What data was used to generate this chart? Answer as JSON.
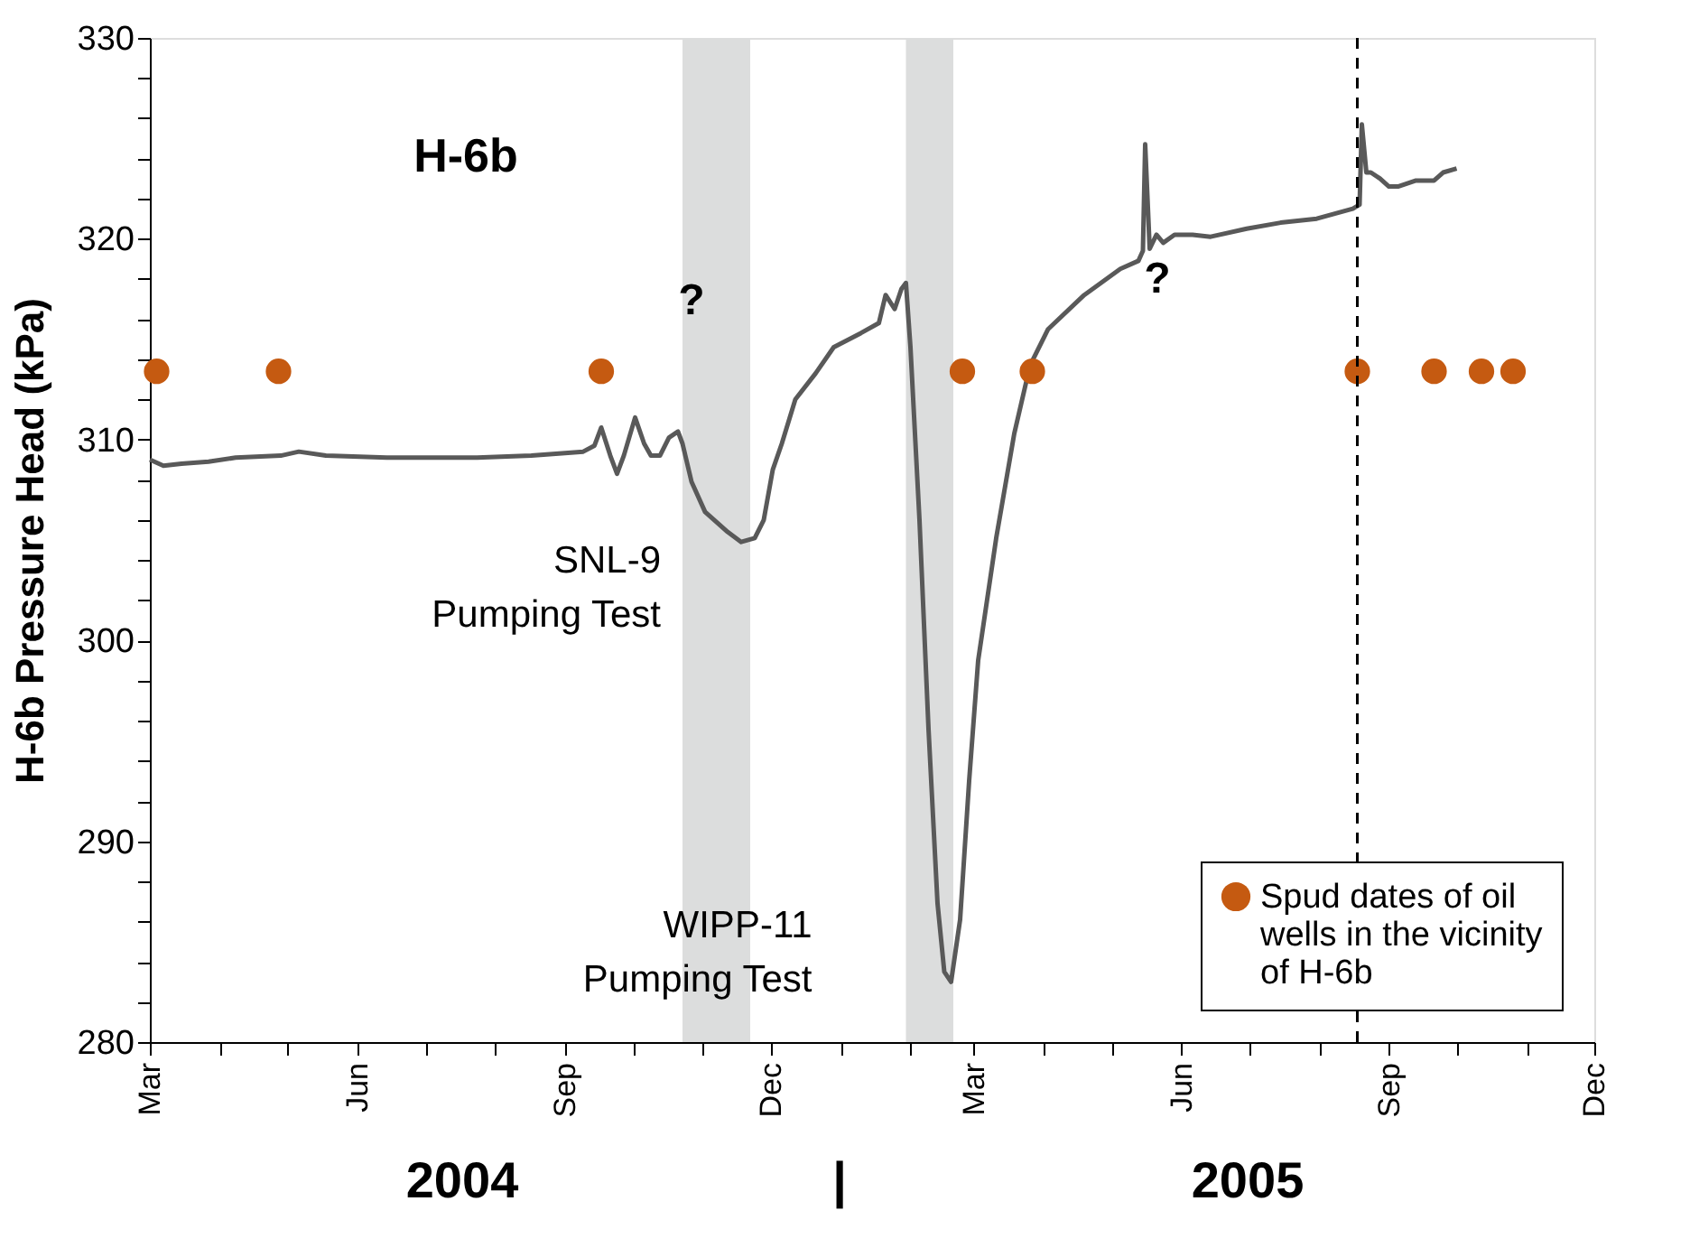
{
  "chart_data": {
    "type": "line",
    "title": "H-6b",
    "ylabel": "H-6b Pressure Head (kPa)",
    "xlim": [
      "2004-03-01",
      "2005-12-01"
    ],
    "xticks": [
      {
        "value": "2004-03-01",
        "label": "Mar"
      },
      {
        "value": "2004-04-01",
        "label": null
      },
      {
        "value": "2004-05-01",
        "label": null
      },
      {
        "value": "2004-06-01",
        "label": "Jun"
      },
      {
        "value": "2004-07-01",
        "label": null
      },
      {
        "value": "2004-08-01",
        "label": null
      },
      {
        "value": "2004-09-01",
        "label": "Sep"
      },
      {
        "value": "2004-10-01",
        "label": null
      },
      {
        "value": "2004-11-01",
        "label": null
      },
      {
        "value": "2004-12-01",
        "label": "Dec"
      },
      {
        "value": "2005-01-01",
        "label": null
      },
      {
        "value": "2005-02-01",
        "label": null
      },
      {
        "value": "2005-03-01",
        "label": "Mar"
      },
      {
        "value": "2005-04-01",
        "label": null
      },
      {
        "value": "2005-05-01",
        "label": null
      },
      {
        "value": "2005-06-01",
        "label": "Jun"
      },
      {
        "value": "2005-07-01",
        "label": null
      },
      {
        "value": "2005-08-01",
        "label": null
      },
      {
        "value": "2005-09-01",
        "label": "Sep"
      },
      {
        "value": "2005-10-01",
        "label": null
      },
      {
        "value": "2005-11-01",
        "label": null
      },
      {
        "value": "2005-12-01",
        "label": "Dec"
      }
    ],
    "ylim": [
      280,
      330
    ],
    "yticks": [
      280,
      {
        "value": 282,
        "label": null
      },
      {
        "value": 284,
        "label": null
      },
      {
        "value": 286,
        "label": null
      },
      {
        "value": 288,
        "label": null
      },
      290,
      {
        "value": 292,
        "label": null
      },
      {
        "value": 294,
        "label": null
      },
      {
        "value": 296,
        "label": null
      },
      {
        "value": 298,
        "label": null
      },
      300,
      {
        "value": 302,
        "label": null
      },
      {
        "value": 304,
        "label": null
      },
      {
        "value": 306,
        "label": null
      },
      {
        "value": 308,
        "label": null
      },
      310,
      {
        "value": 312,
        "label": null
      },
      {
        "value": 314,
        "label": null
      },
      {
        "value": 316,
        "label": null
      },
      {
        "value": 318,
        "label": null
      },
      320,
      {
        "value": 322,
        "label": null
      },
      {
        "value": 324,
        "label": null
      },
      {
        "value": 326,
        "label": null
      },
      {
        "value": 328,
        "label": null
      },
      330
    ],
    "grid": false,
    "legend": "bottom right",
    "series": [
      {
        "type": "line",
        "color": "#595959",
        "marker": "none",
        "line_style": "solid",
        "x": [
          "2004-03-01",
          "2004-03-07",
          "2004-03-15",
          "2004-03-27",
          "2004-04-08",
          "2004-04-28",
          "2004-05-06",
          "2004-05-18",
          "2004-06-14",
          "2004-07-24",
          "2004-08-17",
          "2004-09-09",
          "2004-09-14",
          "2004-09-17",
          "2004-09-21",
          "2004-09-24",
          "2004-09-27",
          "2004-10-02",
          "2004-10-06",
          "2004-10-09",
          "2004-10-13",
          "2004-10-17",
          "2004-10-21",
          "2004-10-23",
          "2004-10-27",
          "2004-11-02",
          "2004-11-12",
          "2004-11-18",
          "2004-11-24",
          "2004-11-28",
          "2004-12-02",
          "2004-12-06",
          "2004-12-12",
          "2004-12-21",
          "2004-12-29",
          "2005-01-10",
          "2005-01-18",
          "2005-01-21",
          "2005-01-25",
          "2005-01-28",
          "2005-01-30",
          "2005-02-01",
          "2005-02-05",
          "2005-02-09",
          "2005-02-13",
          "2005-02-16",
          "2005-02-19",
          "2005-02-23",
          "2005-02-27",
          "2005-03-03",
          "2005-03-11",
          "2005-03-19",
          "2005-03-26",
          "2005-04-03",
          "2005-04-19",
          "2005-05-05",
          "2005-05-13",
          "2005-05-15",
          "2005-05-16",
          "2005-05-18",
          "2005-05-21",
          "2005-05-24",
          "2005-05-29",
          "2005-06-06",
          "2005-06-14",
          "2005-06-30",
          "2005-07-15",
          "2005-07-31",
          "2005-08-16",
          "2005-08-19",
          "2005-08-20",
          "2005-08-22",
          "2005-08-24",
          "2005-08-28",
          "2005-09-01",
          "2005-09-05",
          "2005-09-13",
          "2005-09-21",
          "2005-09-25",
          "2005-10-01"
        ],
        "values": [
          309.0,
          308.7,
          308.8,
          308.9,
          309.1,
          309.2,
          309.4,
          309.2,
          309.1,
          309.1,
          309.2,
          309.4,
          309.7,
          310.6,
          309.2,
          308.3,
          309.2,
          311.1,
          309.8,
          309.2,
          309.2,
          310.1,
          310.4,
          309.8,
          307.9,
          306.4,
          305.4,
          304.9,
          305.1,
          306.0,
          308.5,
          309.8,
          312.0,
          313.3,
          314.6,
          315.3,
          315.8,
          317.2,
          316.5,
          317.5,
          317.8,
          314.6,
          306.0,
          295.6,
          286.9,
          283.5,
          283.0,
          286.1,
          293.0,
          299.0,
          305.1,
          310.3,
          313.7,
          315.5,
          317.2,
          318.5,
          318.9,
          319.4,
          324.7,
          319.5,
          320.2,
          319.8,
          320.2,
          320.2,
          320.1,
          320.5,
          320.8,
          321.0,
          321.5,
          321.7,
          325.7,
          323.3,
          323.3,
          323.0,
          322.6,
          322.6,
          322.9,
          322.9,
          323.3,
          323.5
        ]
      },
      {
        "type": "scatter",
        "name": "Spud dates of oil\nwells in the vicinity\nof H-6b",
        "color": "#c55a11",
        "marker": "circle",
        "x": [
          "2004-03-04",
          "2004-04-27",
          "2004-09-17",
          "2005-02-24",
          "2005-03-27",
          "2005-08-18",
          "2005-09-21",
          "2005-10-12",
          "2005-10-26"
        ],
        "values": [
          313.4,
          313.4,
          313.4,
          313.4,
          313.4,
          313.4,
          313.4,
          313.4,
          313.4
        ]
      }
    ],
    "bands": [
      {
        "axis": "x",
        "from": "2004-10-23",
        "to": "2004-11-22",
        "label": "SNL-9\nPumping Test",
        "color": "#dcdddd"
      },
      {
        "axis": "x",
        "from": "2005-01-30",
        "to": "2005-02-20",
        "label": "WIPP-11\nPumping Test",
        "color": "#dcdddd"
      }
    ],
    "ref_lines": [
      {
        "axis": "x",
        "value": "2005-08-18",
        "label": null,
        "color": "#000000",
        "line_style": "dashed"
      }
    ],
    "annotations": [
      "?",
      "?",
      "2004",
      "|",
      "2005"
    ]
  }
}
